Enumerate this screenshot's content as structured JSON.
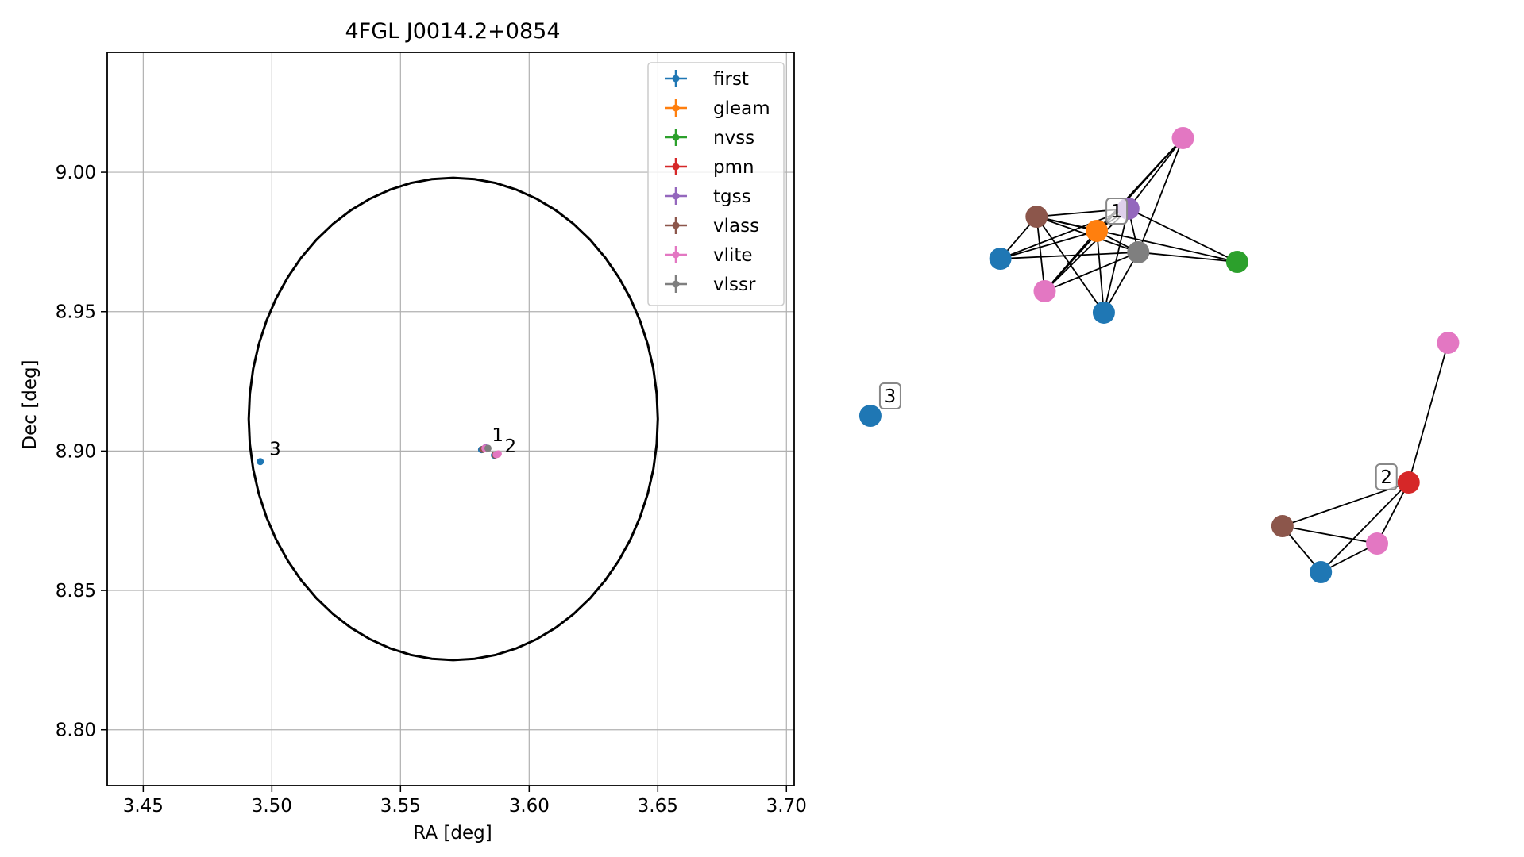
{
  "chart_data": [
    {
      "type": "scatter",
      "title": "4FGL J0014.2+0854",
      "xlabel": "RA [deg]",
      "ylabel": "Dec [deg]",
      "xlim": [
        3.436,
        3.703
      ],
      "ylim": [
        8.78,
        9.043
      ],
      "xticks": [
        "3.45",
        "3.50",
        "3.55",
        "3.60",
        "3.65",
        "3.70"
      ],
      "yticks": [
        "8.80",
        "8.85",
        "8.90",
        "8.95",
        "9.00"
      ],
      "grid": true,
      "legend_position": "upper right",
      "series": [
        {
          "name": "first",
          "color": "#1f77b4",
          "points": [
            [
              3.4955,
              8.8962
            ],
            [
              3.5815,
              8.9005
            ],
            [
              3.5865,
              8.8985
            ]
          ]
        },
        {
          "name": "gleam",
          "color": "#ff7f0e",
          "points": [
            [
              3.5825,
              8.9008
            ]
          ]
        },
        {
          "name": "nvss",
          "color": "#2ca02c",
          "points": [
            [
              3.5835,
              8.9008
            ]
          ]
        },
        {
          "name": "pmn",
          "color": "#d62728",
          "points": [
            [
              3.5875,
              8.8988
            ]
          ]
        },
        {
          "name": "tgss",
          "color": "#9467bd",
          "points": [
            [
              3.583,
              8.9012
            ]
          ]
        },
        {
          "name": "vlass",
          "color": "#8c564b",
          "points": [
            [
              3.582,
              8.9006
            ],
            [
              3.5868,
              8.8986
            ]
          ]
        },
        {
          "name": "vlite",
          "color": "#e377c2",
          "points": [
            [
              3.5828,
              8.901
            ],
            [
              3.5872,
              8.8987
            ],
            [
              3.588,
              8.899
            ]
          ]
        },
        {
          "name": "vlssr",
          "color": "#7f7f7f",
          "points": [
            [
              3.584,
              8.901
            ]
          ]
        }
      ],
      "ellipse": {
        "ra_center": 3.5705,
        "dec_center": 8.9115,
        "ra_halfwidth": 0.0795,
        "dec_halfheight": 0.0865
      },
      "annotations": [
        {
          "text": "1",
          "ra": 3.5855,
          "dec": 8.9035
        },
        {
          "text": "2",
          "ra": 3.5905,
          "dec": 8.8995
        },
        {
          "text": "3",
          "ra": 3.499,
          "dec": 8.8985
        }
      ]
    },
    {
      "type": "network",
      "nodes": [
        {
          "id": "n1",
          "color": "#e377c2",
          "pos": [
            0.7762,
            0.8389
          ]
        },
        {
          "id": "n2",
          "color": "#9467bd",
          "pos": [
            0.7404,
            0.7565
          ]
        },
        {
          "id": "n3",
          "color": "#8c564b",
          "pos": [
            0.6802,
            0.7472
          ]
        },
        {
          "id": "n4",
          "color": "#ff7f0e",
          "pos": [
            0.7197,
            0.7306
          ]
        },
        {
          "id": "n5",
          "color": "#7f7f7f",
          "pos": [
            0.7469,
            0.7056
          ]
        },
        {
          "id": "n6",
          "color": "#1f77b4",
          "pos": [
            0.6564,
            0.6981
          ]
        },
        {
          "id": "n7",
          "color": "#2ca02c",
          "pos": [
            0.8118,
            0.6944
          ]
        },
        {
          "id": "n8",
          "color": "#e377c2",
          "pos": [
            0.6855,
            0.6602
          ]
        },
        {
          "id": "n9",
          "color": "#1f77b4",
          "pos": [
            0.7243,
            0.6352
          ]
        },
        {
          "id": "n10",
          "color": "#e377c2",
          "pos": [
            0.9502,
            0.6
          ]
        },
        {
          "id": "n11",
          "color": "#1f77b4",
          "pos": [
            0.5711,
            0.5148
          ]
        },
        {
          "id": "n12",
          "color": "#d62728",
          "pos": [
            0.9243,
            0.437
          ]
        },
        {
          "id": "n13",
          "color": "#8c564b",
          "pos": [
            0.8415,
            0.3861
          ]
        },
        {
          "id": "n14",
          "color": "#e377c2",
          "pos": [
            0.9036,
            0.3657
          ]
        },
        {
          "id": "n15",
          "color": "#1f77b4",
          "pos": [
            0.8667,
            0.3324
          ]
        }
      ],
      "edges": [
        [
          "n1",
          "n2"
        ],
        [
          "n1",
          "n4"
        ],
        [
          "n1",
          "n5"
        ],
        [
          "n1",
          "n8"
        ],
        [
          "n2",
          "n3"
        ],
        [
          "n2",
          "n4"
        ],
        [
          "n2",
          "n5"
        ],
        [
          "n2",
          "n6"
        ],
        [
          "n2",
          "n7"
        ],
        [
          "n2",
          "n8"
        ],
        [
          "n2",
          "n9"
        ],
        [
          "n3",
          "n4"
        ],
        [
          "n3",
          "n5"
        ],
        [
          "n3",
          "n6"
        ],
        [
          "n3",
          "n7"
        ],
        [
          "n3",
          "n8"
        ],
        [
          "n3",
          "n9"
        ],
        [
          "n4",
          "n5"
        ],
        [
          "n4",
          "n6"
        ],
        [
          "n4",
          "n8"
        ],
        [
          "n4",
          "n9"
        ],
        [
          "n5",
          "n6"
        ],
        [
          "n5",
          "n7"
        ],
        [
          "n5",
          "n8"
        ],
        [
          "n5",
          "n9"
        ],
        [
          "n10",
          "n12"
        ],
        [
          "n12",
          "n13"
        ],
        [
          "n12",
          "n14"
        ],
        [
          "n12",
          "n15"
        ],
        [
          "n13",
          "n14"
        ],
        [
          "n13",
          "n15"
        ],
        [
          "n14",
          "n15"
        ]
      ],
      "labels": [
        {
          "text": "1",
          "anchor": "n4"
        },
        {
          "text": "2",
          "anchor": "n12"
        },
        {
          "text": "3",
          "anchor": "n11"
        }
      ]
    }
  ]
}
